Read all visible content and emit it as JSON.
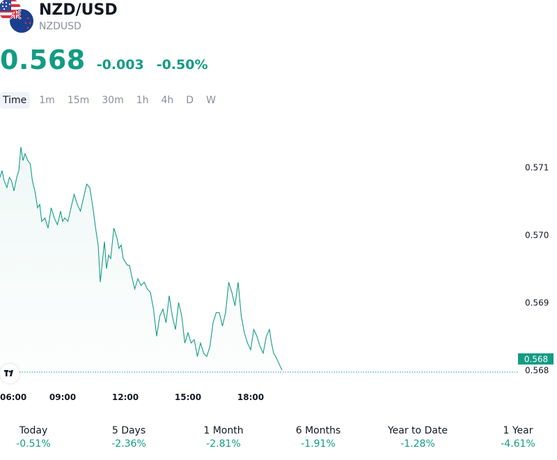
{
  "symbol": {
    "name": "NZD/USD",
    "ticker": "NZDUSD",
    "price": "0.568",
    "change": "-0.003",
    "change_pct": "-0.50%"
  },
  "colors": {
    "accent": "#139b84",
    "muted": "#8a8e99",
    "text": "#131722"
  },
  "icons": {
    "flags": "usd-nzd-flags-icon",
    "logo": "tradingview-logo-icon"
  },
  "timeframes": [
    {
      "label": "Time",
      "active": true
    },
    {
      "label": "1m"
    },
    {
      "label": "15m"
    },
    {
      "label": "30m"
    },
    {
      "label": "1h"
    },
    {
      "label": "4h"
    },
    {
      "label": "D"
    },
    {
      "label": "W"
    }
  ],
  "chart_data": {
    "type": "area",
    "x_ticks": [
      "06:00",
      "09:00",
      "12:00",
      "15:00",
      "18:00"
    ],
    "y_ticks": [
      "0.571",
      "0.570",
      "0.569",
      "0.568"
    ],
    "last_price_label": "0.568",
    "ylim": [
      0.5678,
      0.5714
    ],
    "x_range_hours": [
      6,
      24
    ],
    "series": [
      {
        "x": [
          6.0,
          6.1,
          6.2,
          6.33,
          6.45,
          6.55,
          6.67,
          6.8,
          6.9,
          7.0,
          7.1,
          7.2,
          7.33,
          7.45,
          7.55,
          7.67,
          7.8,
          7.9,
          8.0,
          8.15,
          8.3,
          8.45,
          8.6,
          8.75,
          8.9,
          9.0,
          9.1,
          9.25,
          9.4,
          9.55,
          9.7,
          9.85,
          10.0,
          10.15,
          10.3,
          10.45,
          10.6,
          10.7,
          10.8,
          10.9,
          11.0,
          11.1,
          11.2,
          11.3,
          11.45,
          11.6,
          11.7,
          11.8,
          11.9,
          12.0,
          12.1,
          12.2,
          12.3,
          12.45,
          12.6,
          12.75,
          12.9,
          13.05,
          13.2,
          13.35,
          13.5,
          13.65,
          13.8,
          13.95,
          14.1,
          14.25,
          14.4,
          14.55,
          14.7,
          14.85,
          15.0,
          15.15,
          15.3,
          15.45,
          15.6,
          15.75,
          15.9,
          16.05,
          16.2,
          16.35,
          16.5,
          16.65,
          16.8,
          16.95,
          17.1,
          17.25,
          17.4,
          17.55,
          17.7,
          17.85,
          18.0,
          18.15,
          18.3,
          18.45,
          18.6,
          18.75,
          18.9,
          19.0,
          19.1,
          19.2,
          19.35,
          19.5
        ],
        "values": [
          0.57085,
          0.57095,
          0.5708,
          0.5707,
          0.57085,
          0.5708,
          0.57065,
          0.57085,
          0.57095,
          0.5713,
          0.5711,
          0.5712,
          0.5711,
          0.57105,
          0.5708,
          0.57065,
          0.5704,
          0.57045,
          0.5702,
          0.57025,
          0.5701,
          0.5704,
          0.57025,
          0.57015,
          0.57035,
          0.5702,
          0.57025,
          0.5702,
          0.5704,
          0.5706,
          0.57045,
          0.57035,
          0.57055,
          0.57075,
          0.5707,
          0.5704,
          0.57005,
          0.56985,
          0.5693,
          0.5696,
          0.5699,
          0.5695,
          0.5697,
          0.56965,
          0.5701,
          0.56995,
          0.5698,
          0.56985,
          0.56965,
          0.5696,
          0.56955,
          0.56955,
          0.5694,
          0.5692,
          0.56935,
          0.56925,
          0.5693,
          0.5692,
          0.56915,
          0.5689,
          0.5685,
          0.5688,
          0.5689,
          0.5687,
          0.5691,
          0.5688,
          0.5686,
          0.569,
          0.5688,
          0.5684,
          0.56855,
          0.5684,
          0.56845,
          0.5682,
          0.5684,
          0.56825,
          0.5682,
          0.56835,
          0.5687,
          0.56885,
          0.56885,
          0.56865,
          0.56885,
          0.5693,
          0.56915,
          0.56895,
          0.5693,
          0.5688,
          0.56855,
          0.5684,
          0.5683,
          0.5686,
          0.5685,
          0.56835,
          0.56825,
          0.5685,
          0.5686,
          0.5684,
          0.56825,
          0.5682,
          0.5681,
          0.568
        ]
      }
    ]
  },
  "performance": [
    {
      "label": "Today",
      "value": "-0.51%"
    },
    {
      "label": "5 Days",
      "value": "-2.36%"
    },
    {
      "label": "1 Month",
      "value": "-2.81%"
    },
    {
      "label": "6 Months",
      "value": "-1.91%"
    },
    {
      "label": "Year to Date",
      "value": "-1.28%"
    },
    {
      "label": "1 Year",
      "value": "-4.61%"
    }
  ]
}
